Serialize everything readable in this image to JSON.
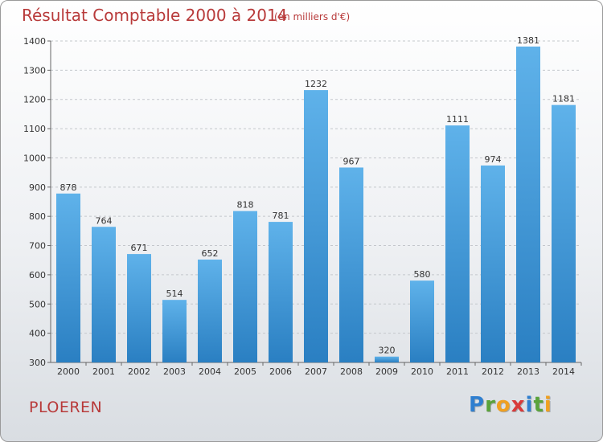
{
  "header": {
    "title": "Résultat Comptable 2000 à 2014",
    "subtitle": "(en milliers d'€)"
  },
  "footer": {
    "city": "PLOEREN",
    "logo_letters": [
      {
        "ch": "P",
        "color": "#2f7fd0"
      },
      {
        "ch": "r",
        "color": "#5aa33a"
      },
      {
        "ch": "o",
        "color": "#f0a020"
      },
      {
        "ch": "x",
        "color": "#d83a3a"
      },
      {
        "ch": "i",
        "color": "#2f7fd0"
      },
      {
        "ch": "t",
        "color": "#5aa33a"
      },
      {
        "ch": "i",
        "color": "#f0a020"
      }
    ]
  },
  "chart_data": {
    "type": "bar",
    "title": "Résultat Comptable 2000 à 2014",
    "subtitle": "(en milliers d'€)",
    "categories": [
      "2000",
      "2001",
      "2002",
      "2003",
      "2004",
      "2005",
      "2006",
      "2007",
      "2008",
      "2009",
      "2010",
      "2011",
      "2012",
      "2013",
      "2014"
    ],
    "values": [
      878,
      764,
      671,
      514,
      652,
      818,
      781,
      1232,
      967,
      320,
      580,
      1111,
      974,
      1381,
      1181
    ],
    "ylim": [
      300,
      1400
    ],
    "yticks": [
      300,
      400,
      500,
      600,
      700,
      800,
      900,
      1000,
      1100,
      1200,
      1300,
      1400
    ],
    "grid": true,
    "bar_color": "#3d97db"
  }
}
